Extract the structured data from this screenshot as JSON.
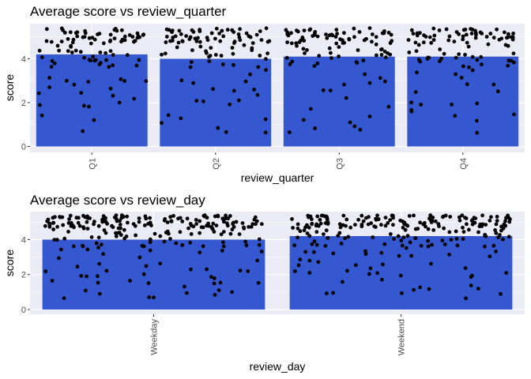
{
  "colors": {
    "panel": "#EBEBF5",
    "grid": "#FFFFFF",
    "bar": "#3558D0",
    "point": "#000000",
    "tick_mark": "#333333"
  },
  "chart_data": [
    {
      "type": "bar",
      "title": "Average  score  vs  review_quarter",
      "xlabel": "review_quarter",
      "ylabel": "score",
      "categories": [
        "Q1",
        "Q2",
        "Q3",
        "Q4"
      ],
      "values": [
        4.2,
        4.0,
        4.1,
        4.1
      ],
      "ylim": [
        -0.27,
        5.6
      ],
      "yticks": [
        0,
        2,
        4
      ],
      "grid": true,
      "overlay": "jittered scores (0.6 to 5.4) per category",
      "points_per_category": 100
    },
    {
      "type": "bar",
      "title": "Average  score  vs  review_day",
      "xlabel": "review_day",
      "ylabel": "score",
      "categories": [
        "Weekday",
        "Weekend"
      ],
      "values": [
        4.0,
        4.2
      ],
      "ylim": [
        -0.27,
        5.6
      ],
      "yticks": [
        0,
        2,
        4
      ],
      "grid": true,
      "overlay": "jittered scores (0.6 to 5.4) per category",
      "points_per_category": 230
    }
  ]
}
